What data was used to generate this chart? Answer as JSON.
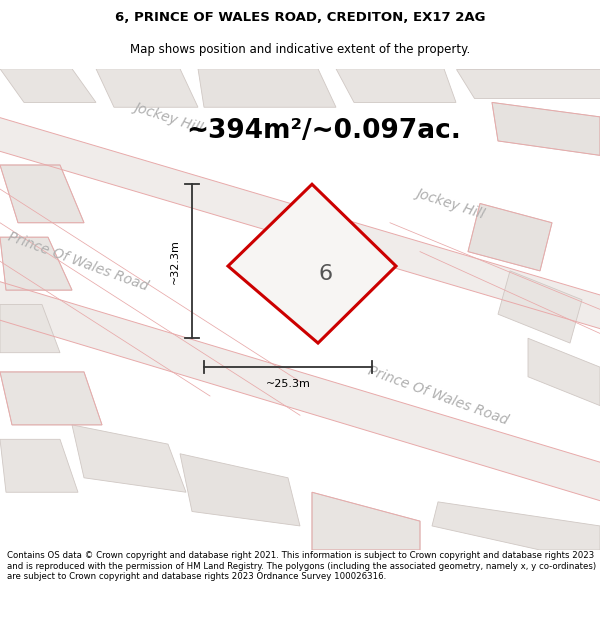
{
  "title_line1": "6, PRINCE OF WALES ROAD, CREDITON, EX17 2AG",
  "title_line2": "Map shows position and indicative extent of the property.",
  "area_text": "~394m²/~0.097ac.",
  "plot_number": "6",
  "dim_width": "~25.3m",
  "dim_height": "~32.3m",
  "street_label_jockey1": "Jockey Hill",
  "street_label_jockey2": "Jockey Hill",
  "street_label_prince1": "Prince Of Wales Road",
  "street_label_prince2": "Prince Of Wales Road",
  "copyright_text": "Contains OS data © Crown copyright and database right 2021. This information is subject to Crown copyright and database rights 2023 and is reproduced with the permission of HM Land Registry. The polygons (including the associated geometry, namely x, y co-ordinates) are subject to Crown copyright and database rights 2023 Ordnance Survey 100026316.",
  "map_bg": "#f7f5f3",
  "plot_fill": "#f7f5f3",
  "plot_border": "#cc0000",
  "road_line_color": "#e8aaaa",
  "block_fill": "#e8e4e1",
  "block_border": "#d0c8c4",
  "dim_color": "#333333",
  "street_color": "#aaaaaa",
  "title_fontsize": 9.5,
  "subtitle_fontsize": 8.5,
  "area_fontsize": 19,
  "plot_num_fontsize": 16,
  "dim_fontsize": 8,
  "street_fontsize": 10,
  "copyright_fontsize": 6.2
}
